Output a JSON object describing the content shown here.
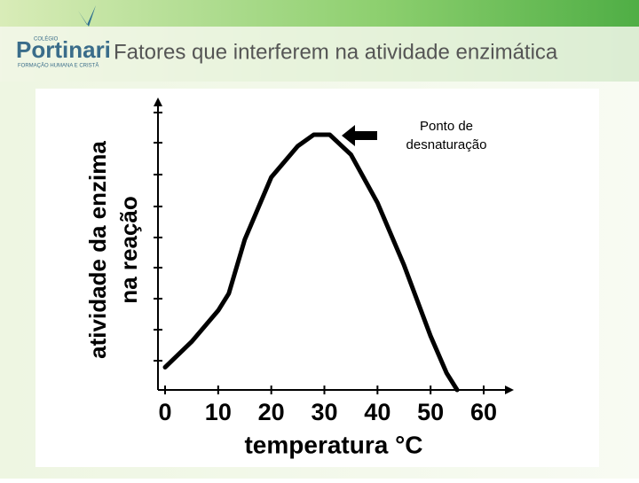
{
  "header": {
    "logo_top": "COLÉGIO",
    "logo_name": "Portinari",
    "logo_sub": "FORMAÇÃO HUMANA E CRISTÃ",
    "title": "Fatores que interferem na atividade enzimática"
  },
  "chart_data": {
    "type": "line",
    "y_label_lines": [
      "atividade da enzima",
      "na reação"
    ],
    "x_label": "temperatura °C",
    "annotation_lines": [
      "Ponto de",
      "desnaturação"
    ],
    "x": [
      0,
      5,
      10,
      12,
      15,
      20,
      25,
      28,
      31,
      35,
      40,
      45,
      50,
      53,
      55
    ],
    "values": [
      8,
      17,
      28,
      34,
      53,
      75,
      86,
      90,
      90,
      83,
      66,
      44,
      19,
      6,
      0
    ],
    "color": "#000000",
    "xlim": [
      0,
      60
    ],
    "xticks": [
      0,
      10,
      20,
      30,
      40,
      50,
      60
    ],
    "ylim": [
      0,
      100
    ]
  }
}
